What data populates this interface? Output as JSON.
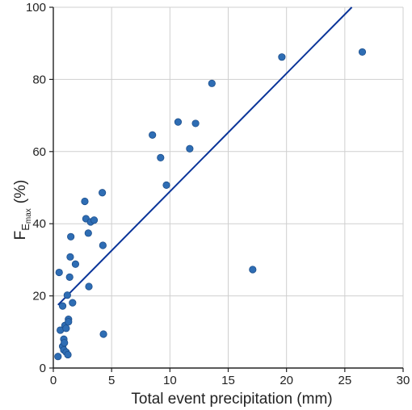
{
  "chart_data": {
    "type": "scatter",
    "xlabel": "Total event precipitation (mm)",
    "ylabel_main": "F",
    "ylabel_sub": "E",
    "ylabel_subsub": "max",
    "ylabel_unit": "(%)",
    "xlim": [
      0,
      30
    ],
    "ylim": [
      0,
      100
    ],
    "x_ticks": [
      0,
      5,
      10,
      15,
      20,
      25,
      30
    ],
    "y_ticks": [
      0,
      20,
      40,
      60,
      80,
      100
    ],
    "grid": true,
    "colors": {
      "points": "#2e6db4",
      "line": "#0a3499"
    },
    "points": [
      {
        "x": 0.4,
        "y": 3.2
      },
      {
        "x": 0.5,
        "y": 26.5
      },
      {
        "x": 0.6,
        "y": 10.5
      },
      {
        "x": 0.8,
        "y": 17.2
      },
      {
        "x": 0.8,
        "y": 6.0
      },
      {
        "x": 0.9,
        "y": 5.0
      },
      {
        "x": 0.9,
        "y": 8.0
      },
      {
        "x": 0.95,
        "y": 7.0
      },
      {
        "x": 1.0,
        "y": 11.8
      },
      {
        "x": 1.1,
        "y": 11.0
      },
      {
        "x": 1.1,
        "y": 4.4
      },
      {
        "x": 1.2,
        "y": 20.2
      },
      {
        "x": 1.25,
        "y": 3.7
      },
      {
        "x": 1.3,
        "y": 13.5
      },
      {
        "x": 1.3,
        "y": 12.8
      },
      {
        "x": 1.4,
        "y": 25.2
      },
      {
        "x": 1.45,
        "y": 30.8
      },
      {
        "x": 1.5,
        "y": 36.4
      },
      {
        "x": 1.65,
        "y": 18.1
      },
      {
        "x": 1.9,
        "y": 28.8
      },
      {
        "x": 2.7,
        "y": 46.2
      },
      {
        "x": 2.8,
        "y": 41.4
      },
      {
        "x": 3.0,
        "y": 37.4
      },
      {
        "x": 3.05,
        "y": 22.6
      },
      {
        "x": 3.2,
        "y": 40.5
      },
      {
        "x": 3.5,
        "y": 41.0
      },
      {
        "x": 4.2,
        "y": 48.6
      },
      {
        "x": 4.25,
        "y": 34.0
      },
      {
        "x": 4.3,
        "y": 9.4
      },
      {
        "x": 8.5,
        "y": 64.6
      },
      {
        "x": 9.2,
        "y": 58.3
      },
      {
        "x": 9.7,
        "y": 50.7
      },
      {
        "x": 10.7,
        "y": 68.2
      },
      {
        "x": 11.7,
        "y": 60.8
      },
      {
        "x": 12.2,
        "y": 67.8
      },
      {
        "x": 13.6,
        "y": 78.9
      },
      {
        "x": 17.1,
        "y": 27.3
      },
      {
        "x": 19.6,
        "y": 86.2
      },
      {
        "x": 26.5,
        "y": 87.6
      }
    ],
    "trend_line": {
      "x": [
        0.4,
        25.6
      ],
      "y": [
        17.5,
        100
      ]
    }
  }
}
